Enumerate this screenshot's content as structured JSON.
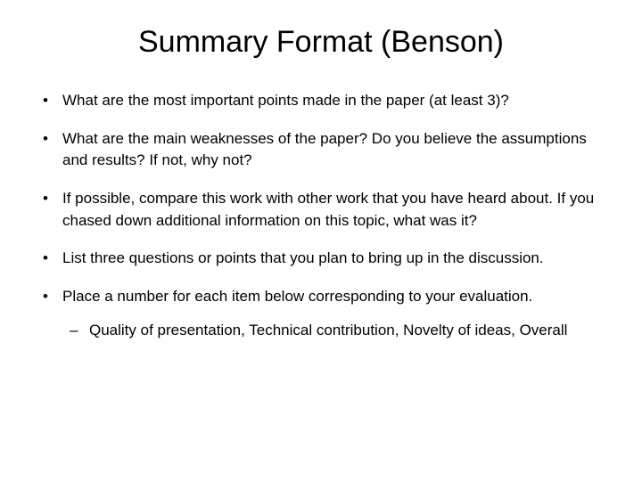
{
  "title": "Summary Format (Benson)",
  "bullets": [
    {
      "text": "What are the most important points made in the paper (at least 3)?"
    },
    {
      "text": "What are the main weaknesses of the paper?  Do you believe the assumptions and results?  If not, why not?"
    },
    {
      "text": "If possible, compare this work with other work that you have heard about.  If you chased down additional information on this topic, what was it?"
    },
    {
      "text": "List three questions or points that you plan to bring up in the discussion."
    },
    {
      "text": "Place a number for each item below corresponding to your evaluation.",
      "sub": [
        {
          "text": "Quality of presentation, Technical contribution, Novelty of ideas, Overall"
        }
      ]
    }
  ],
  "style": {
    "background_color": "#ffffff",
    "text_color": "#000000",
    "title_fontsize": 34,
    "body_fontsize": 17,
    "font_family": "Arial",
    "bullet_glyph": "•",
    "sub_bullet_glyph": "–"
  }
}
